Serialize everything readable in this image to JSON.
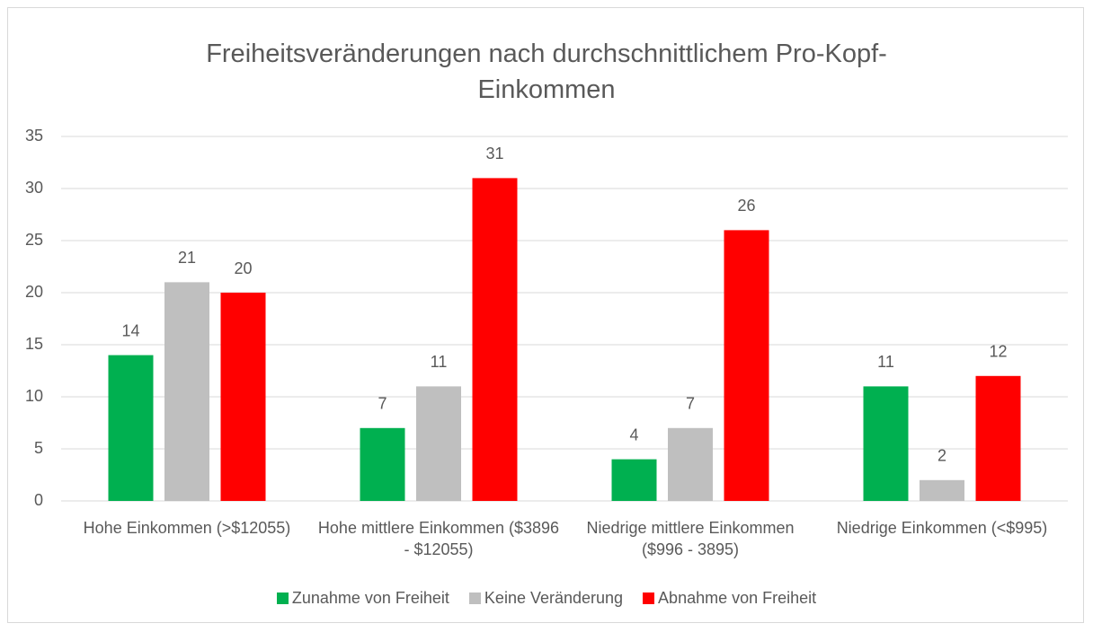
{
  "chart_data": {
    "type": "bar",
    "title": "Freiheitsveränderungen nach durchschnittlichem Pro-Kopf-Einkommen",
    "categories": [
      "Hohe Einkommen (>$12055)",
      "Hohe mittlere Einkommen ($3896 - $12055)",
      "Niedrige mittlere Einkommen ($996 - 3895)",
      "Niedrige Einkommen (<$995)"
    ],
    "series": [
      {
        "name": "Zunahme von Freiheit",
        "color": "#00b050",
        "values": [
          14,
          7,
          4,
          11
        ]
      },
      {
        "name": "Keine Veränderung",
        "color": "#bfbfbf",
        "values": [
          21,
          11,
          7,
          2
        ]
      },
      {
        "name": "Abnahme von Freiheit",
        "color": "#ff0000",
        "values": [
          20,
          31,
          26,
          12
        ]
      }
    ],
    "ylim": [
      0,
      35
    ],
    "yticks": [
      0,
      5,
      10,
      15,
      20,
      25,
      30,
      35
    ],
    "grid": true,
    "legend": "bottom"
  }
}
